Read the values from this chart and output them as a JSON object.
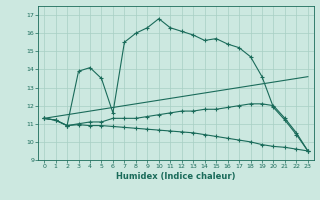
{
  "xlabel": "Humidex (Indice chaleur)",
  "bg_color": "#cce8e0",
  "line_color": "#1a6b5a",
  "grid_color": "#a8cfc4",
  "xlim": [
    -0.5,
    23.5
  ],
  "ylim": [
    9,
    17.5
  ],
  "yticks": [
    9,
    10,
    11,
    12,
    13,
    14,
    15,
    16,
    17
  ],
  "xticks": [
    0,
    1,
    2,
    3,
    4,
    5,
    6,
    7,
    8,
    9,
    10,
    11,
    12,
    13,
    14,
    15,
    16,
    17,
    18,
    19,
    20,
    21,
    22,
    23
  ],
  "series": [
    {
      "x": [
        0,
        1,
        2,
        3,
        4,
        5,
        6,
        7,
        8,
        9,
        10,
        11,
        12,
        13,
        14,
        15,
        16,
        17,
        18,
        19,
        20,
        21,
        22,
        23
      ],
      "y": [
        11.3,
        11.2,
        10.9,
        13.9,
        14.1,
        13.5,
        11.6,
        15.5,
        16.0,
        16.3,
        16.8,
        16.3,
        16.1,
        15.9,
        15.6,
        15.7,
        15.4,
        15.2,
        14.7,
        13.6,
        11.9,
        11.2,
        10.4,
        9.5
      ],
      "has_markers": true
    },
    {
      "x": [
        0,
        1,
        2,
        3,
        4,
        5,
        6,
        7,
        8,
        9,
        10,
        11,
        12,
        13,
        14,
        15,
        16,
        17,
        18,
        19,
        20,
        21,
        22,
        23
      ],
      "y": [
        11.3,
        11.2,
        10.9,
        11.0,
        11.1,
        11.1,
        11.3,
        11.3,
        11.3,
        11.4,
        11.5,
        11.6,
        11.7,
        11.7,
        11.8,
        11.8,
        11.9,
        12.0,
        12.1,
        12.1,
        12.0,
        11.3,
        10.5,
        9.5
      ],
      "has_markers": true
    },
    {
      "x": [
        0,
        1,
        2,
        3,
        4,
        5,
        6,
        7,
        8,
        9,
        10,
        11,
        12,
        13,
        14,
        15,
        16,
        17,
        18,
        19,
        20,
        21,
        22,
        23
      ],
      "y": [
        11.3,
        11.2,
        10.9,
        10.95,
        10.9,
        10.9,
        10.85,
        10.8,
        10.75,
        10.7,
        10.65,
        10.6,
        10.55,
        10.5,
        10.4,
        10.3,
        10.2,
        10.1,
        10.0,
        9.85,
        9.75,
        9.7,
        9.6,
        9.5
      ],
      "has_markers": true
    },
    {
      "x": [
        0,
        23
      ],
      "y": [
        11.3,
        13.6
      ],
      "has_markers": false
    }
  ]
}
